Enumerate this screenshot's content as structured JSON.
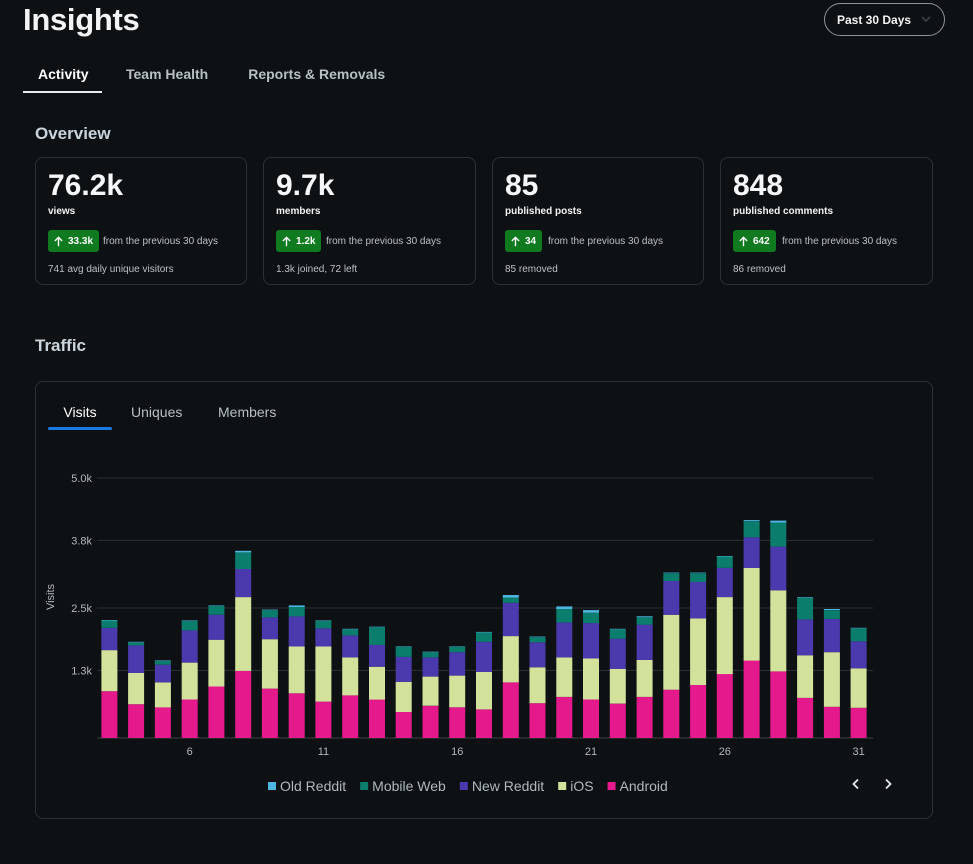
{
  "header": {
    "title": "Insights",
    "range_label": "Past 30 Days"
  },
  "tabs": [
    {
      "label": "Activity",
      "active": true
    },
    {
      "label": "Team Health",
      "active": false
    },
    {
      "label": "Reports & Removals",
      "active": false
    }
  ],
  "overview": {
    "title": "Overview",
    "cards": [
      {
        "value": "76.2k",
        "label": "views",
        "delta": "33.3k",
        "prev": "from the previous 30 days",
        "foot": "741 avg daily unique visitors"
      },
      {
        "value": "9.7k",
        "label": "members",
        "delta": "1.2k",
        "prev": "from the previous 30 days",
        "foot": "1.3k joined, 72 left"
      },
      {
        "value": "85",
        "label": "published posts",
        "delta": "34",
        "prev": "from the previous 30 days",
        "foot": "85 removed"
      },
      {
        "value": "848",
        "label": "published comments",
        "delta": "642",
        "prev": "from the previous 30 days",
        "foot": "86 removed"
      }
    ],
    "delta_color": "#0f7a1f"
  },
  "traffic": {
    "title": "Traffic",
    "tabs": [
      {
        "label": "Visits",
        "active": true
      },
      {
        "label": "Uniques",
        "active": false
      },
      {
        "label": "Members",
        "active": false
      }
    ]
  },
  "chart_data": {
    "type": "bar",
    "stacked": true,
    "ylabel": "Visits",
    "xlabel": "",
    "y_ticks": [
      "5.0k",
      "3.8k",
      "2.5k",
      "1.3k"
    ],
    "y_tick_values": [
      5000,
      3800,
      2500,
      1300
    ],
    "ylim": [
      0,
      5000
    ],
    "x": [
      3,
      4,
      5,
      6,
      7,
      8,
      9,
      10,
      11,
      12,
      13,
      14,
      15,
      16,
      17,
      18,
      19,
      20,
      21,
      22,
      23,
      24,
      25,
      26,
      27,
      28,
      29,
      30,
      31
    ],
    "x_tick_labels": [
      "6",
      "11",
      "16",
      "21",
      "26",
      "31"
    ],
    "legend_position": "bottom",
    "series": [
      {
        "name": "Android",
        "color": "#e3198c",
        "values": [
          900,
          650,
          590,
          740,
          990,
          1290,
          950,
          860,
          700,
          820,
          740,
          500,
          620,
          590,
          550,
          1070,
          670,
          790,
          740,
          660,
          790,
          930,
          1020,
          1230,
          1490,
          1280,
          770,
          600,
          580
        ]
      },
      {
        "name": "iOS",
        "color": "#d2e29b",
        "values": [
          790,
          600,
          480,
          710,
          900,
          1420,
          950,
          900,
          1060,
          730,
          630,
          580,
          560,
          610,
          720,
          890,
          690,
          760,
          790,
          670,
          710,
          1440,
          1280,
          1480,
          1780,
          1560,
          820,
          1050,
          760
        ]
      },
      {
        "name": "New Reddit",
        "color": "#4b3aad",
        "values": [
          430,
          530,
          340,
          620,
          480,
          540,
          420,
          580,
          350,
          420,
          420,
          480,
          370,
          450,
          580,
          640,
          480,
          670,
          680,
          580,
          680,
          650,
          700,
          560,
          590,
          840,
          690,
          640,
          520
        ]
      },
      {
        "name": "Mobile Web",
        "color": "#0a7d6c",
        "values": [
          140,
          60,
          70,
          180,
          170,
          320,
          140,
          180,
          140,
          120,
          340,
          190,
          100,
          100,
          180,
          100,
          100,
          260,
          200,
          180,
          140,
          150,
          170,
          220,
          310,
          460,
          420,
          170,
          250
        ]
      },
      {
        "name": "Old Reddit",
        "color": "#4db5e0",
        "values": [
          10,
          10,
          10,
          10,
          10,
          30,
          10,
          30,
          10,
          10,
          10,
          10,
          10,
          10,
          10,
          50,
          10,
          50,
          50,
          10,
          20,
          10,
          10,
          10,
          20,
          40,
          10,
          20,
          10
        ]
      }
    ]
  },
  "icons": {
    "delta_arrow": "arrow-up-icon",
    "range_chevron": "chevron-down-icon",
    "prev": "chevron-left-icon",
    "next": "chevron-right-icon"
  }
}
